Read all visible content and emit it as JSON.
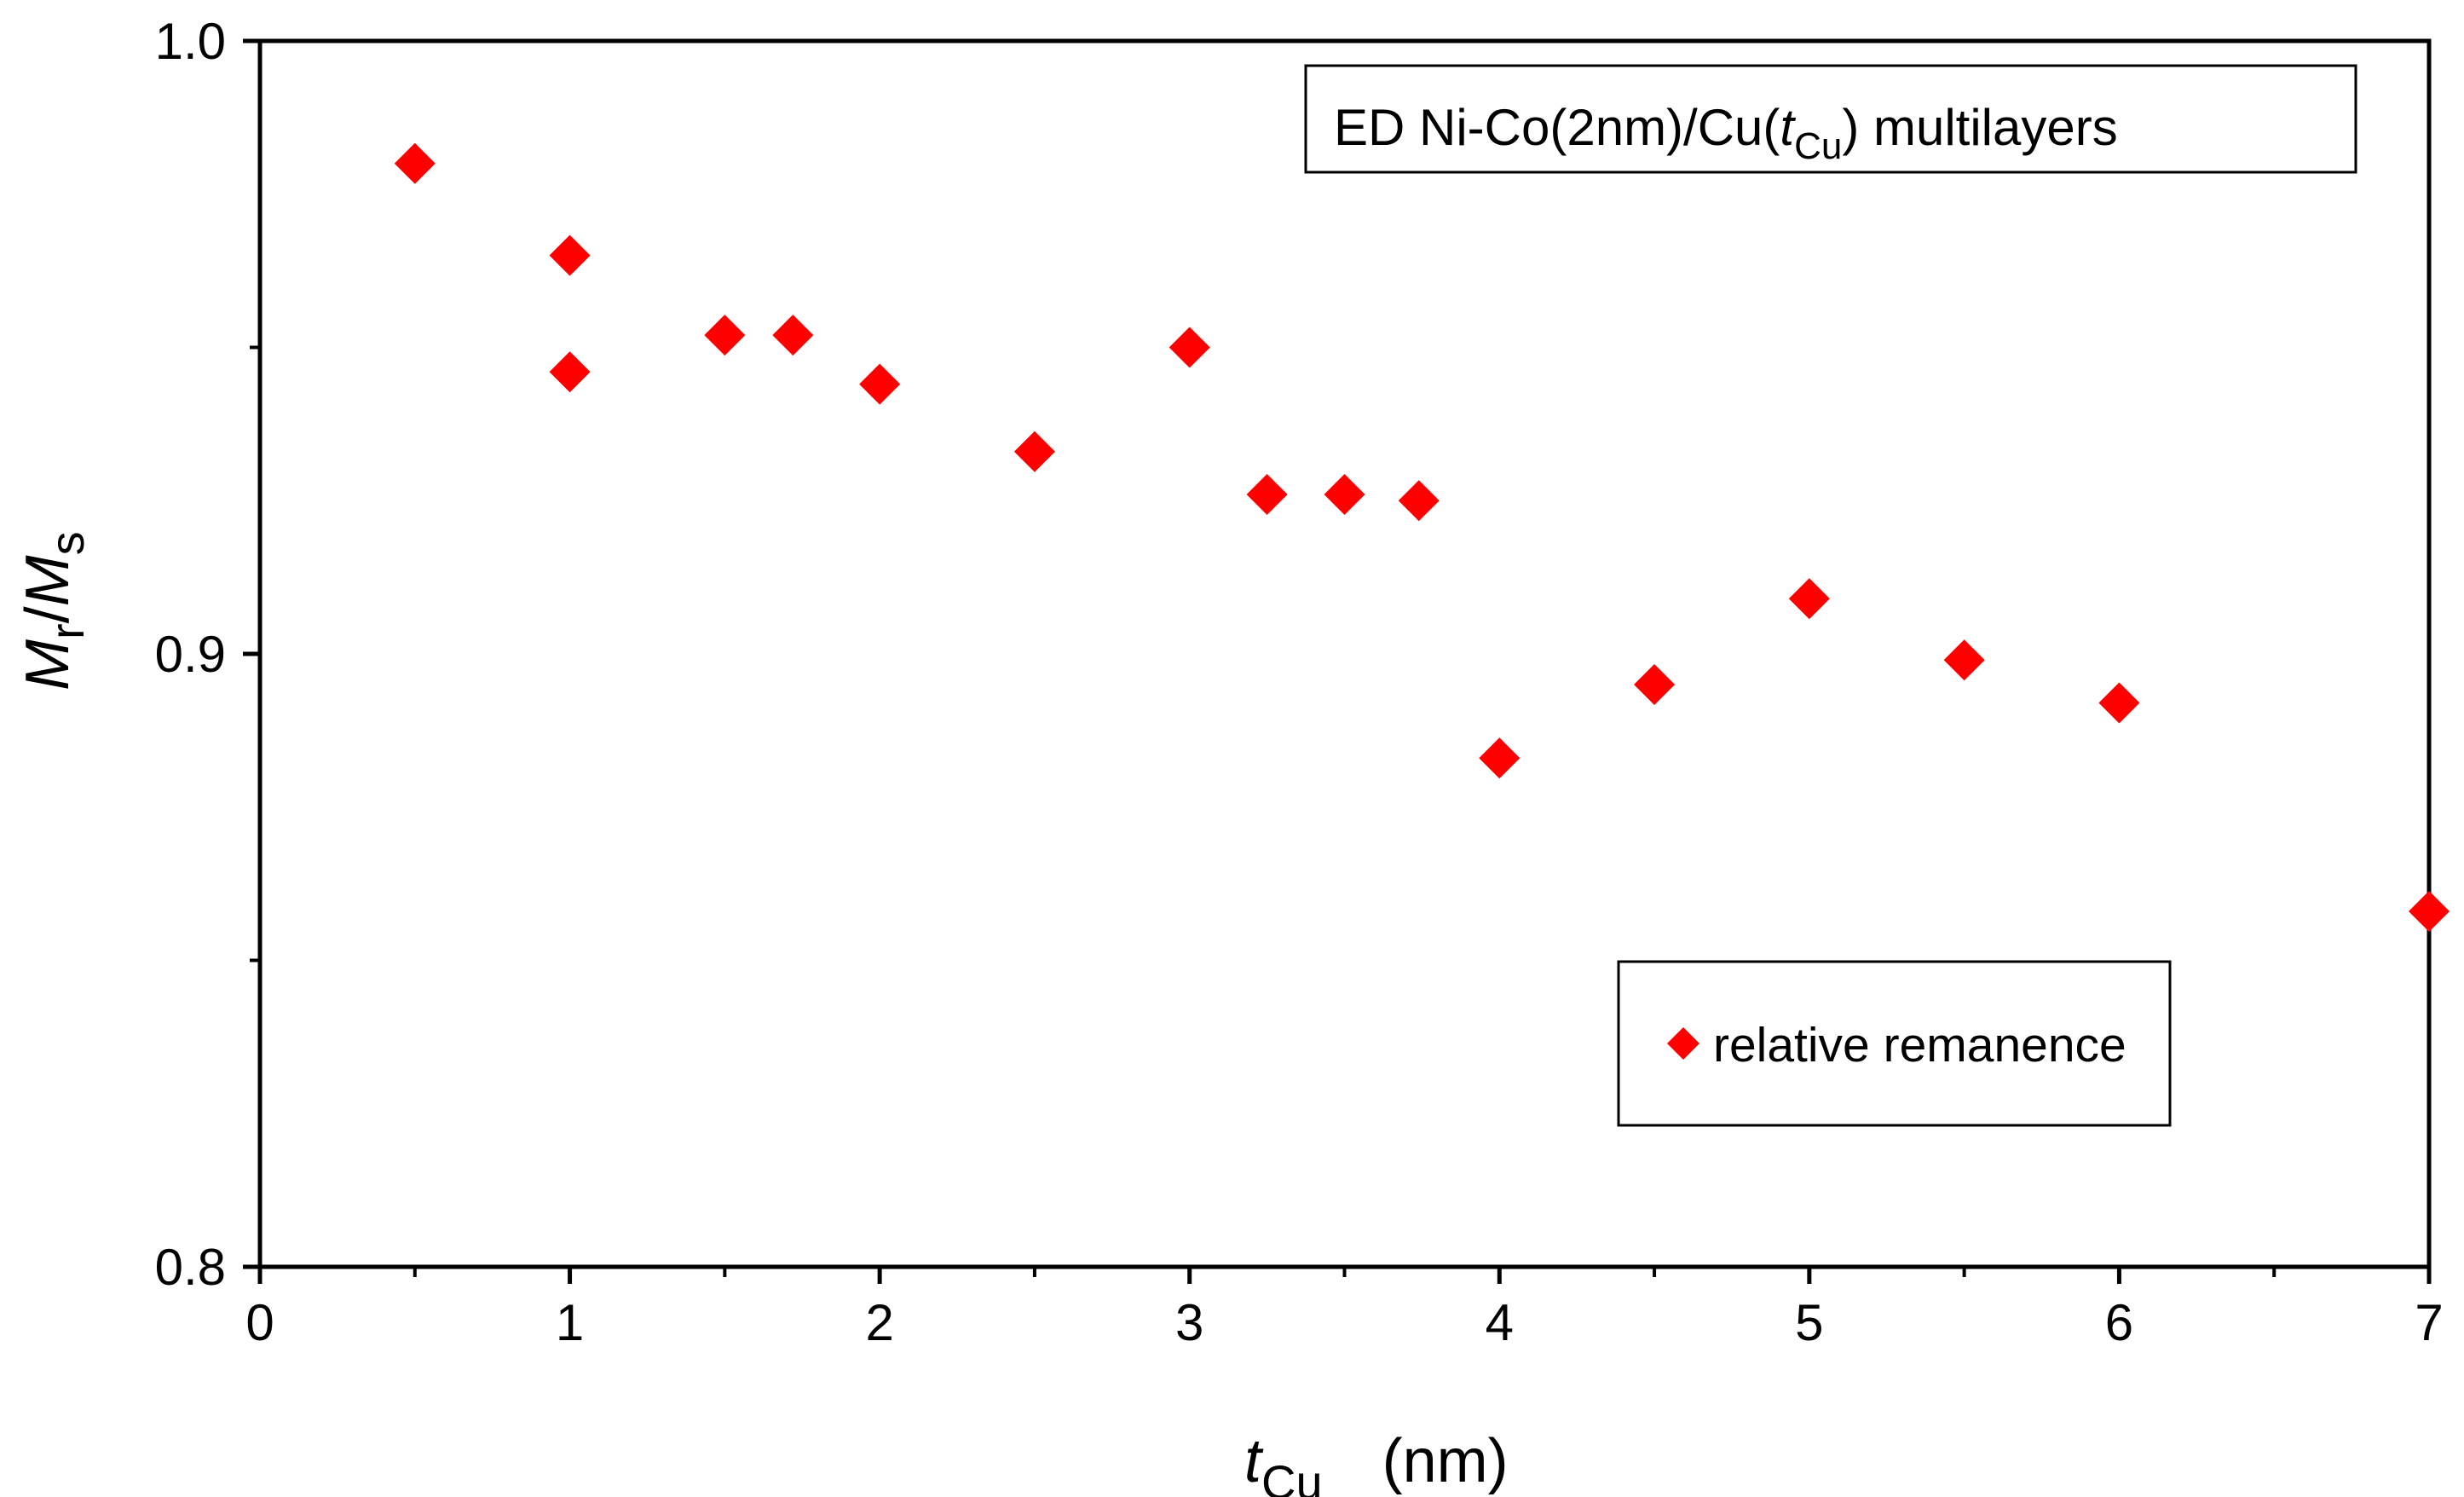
{
  "chart_data": {
    "type": "scatter",
    "title_box": {
      "prefix": "ED Ni-Co(2nm)/Cu(",
      "var": "t",
      "sub": "Cu",
      "suffix": ") multilayers"
    },
    "xlabel": {
      "var": "t",
      "sub": "Cu",
      "unit": "(nm)"
    },
    "ylabel": {
      "m1": "M",
      "sub1": "r",
      "slash": "/",
      "m2": "M",
      "sub2": "s"
    },
    "xlim": [
      0,
      7
    ],
    "ylim": [
      0.8,
      1.0
    ],
    "x_ticks": [
      0,
      1,
      2,
      3,
      4,
      5,
      6,
      7
    ],
    "x_tick_labels": [
      "0",
      "1",
      "2",
      "3",
      "4",
      "5",
      "6",
      "7"
    ],
    "x_minor_ticks": [
      0.5,
      1.5,
      2.5,
      3.5,
      4.5,
      5.5,
      6.5
    ],
    "y_ticks": [
      0.8,
      0.9,
      1.0
    ],
    "y_tick_labels": [
      "0.8",
      "0.9",
      "1.0"
    ],
    "y_minor_ticks": [
      0.85,
      0.95
    ],
    "marker_color": "#ff0000",
    "series": [
      {
        "name": "relative remanence",
        "points": [
          [
            0.5,
            0.98
          ],
          [
            1.0,
            0.965
          ],
          [
            1.0,
            0.946
          ],
          [
            1.5,
            0.952
          ],
          [
            1.72,
            0.952
          ],
          [
            2.0,
            0.944
          ],
          [
            2.5,
            0.933
          ],
          [
            3.0,
            0.95
          ],
          [
            3.25,
            0.926
          ],
          [
            3.5,
            0.926
          ],
          [
            3.74,
            0.925
          ],
          [
            4.0,
            0.883
          ],
          [
            4.5,
            0.895
          ],
          [
            5.0,
            0.909
          ],
          [
            5.5,
            0.899
          ],
          [
            6.0,
            0.892
          ],
          [
            7.0,
            0.858
          ]
        ]
      }
    ],
    "legend": {
      "label": "relative remanence",
      "placement": "lower-right"
    }
  }
}
